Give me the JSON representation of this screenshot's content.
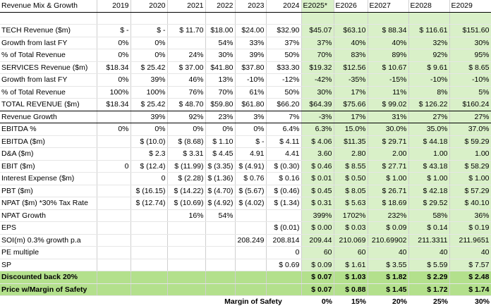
{
  "sheet": {
    "title": "Revenue Mix & Growth",
    "years": [
      "2019",
      "2020",
      "2021",
      "2022",
      "2023",
      "2024",
      "E2025*",
      "E2026",
      "E2027",
      "E2028",
      "E2029"
    ],
    "rows": [
      {
        "label": "",
        "cells": [
          "",
          "",
          "",
          "",
          "",
          "",
          "",
          "",
          "",
          "",
          ""
        ]
      },
      {
        "label": "TECH Revenue ($m)",
        "cells": [
          "$  -",
          "$  -",
          "$ 11.70",
          "$18.00",
          "$24.00",
          "$32.90",
          "$45.07",
          "$63.10",
          "$ 88.34",
          "$ 116.61",
          "$151.60"
        ]
      },
      {
        "label": "Growth from last FY",
        "cells": [
          "0%",
          "0%",
          "",
          "54%",
          "33%",
          "37%",
          "37%",
          "40%",
          "40%",
          "32%",
          "30%"
        ]
      },
      {
        "label": "% of Total Revenue",
        "cells": [
          "0%",
          "0%",
          "24%",
          "30%",
          "39%",
          "50%",
          "70%",
          "83%",
          "89%",
          "92%",
          "95%"
        ]
      },
      {
        "label": "SERVICES Revenue ($m)",
        "cells": [
          "$18.34",
          "$ 25.42",
          "$ 37.00",
          "$41.80",
          "$37.80",
          "$33.30",
          "$19.32",
          "$12.56",
          "$ 10.67",
          "$ 9.61",
          "$ 8.65"
        ]
      },
      {
        "label": "Growth from last FY",
        "cells": [
          "0%",
          "39%",
          "46%",
          "13%",
          "-10%",
          "-12%",
          "-42%",
          "-35%",
          "-15%",
          "-10%",
          "-10%"
        ]
      },
      {
        "label": "% of Total Revenue",
        "cells": [
          "100%",
          "100%",
          "76%",
          "70%",
          "61%",
          "50%",
          "30%",
          "17%",
          "11%",
          "8%",
          "5%"
        ]
      },
      {
        "label": "TOTAL REVENUE ($m)",
        "cells": [
          "$18.34",
          "$ 25.42",
          "$ 48.70",
          "$59.80",
          "$61.80",
          "$66.20",
          "$64.39",
          "$75.66",
          "$ 99.02",
          "$ 126.22",
          "$160.24"
        ]
      },
      {
        "label": "Revenue Growth",
        "cells": [
          "",
          "39%",
          "92%",
          "23%",
          "3%",
          "7%",
          "-3%",
          "17%",
          "31%",
          "27%",
          "27%"
        ]
      },
      {
        "label": "EBITDA %",
        "cells": [
          "0%",
          "0%",
          "0%",
          "0%",
          "0%",
          "6.4%",
          "6.3%",
          "15.0%",
          "30.0%",
          "35.0%",
          "37.0%"
        ]
      },
      {
        "label": "EBITDA ($m)",
        "cells": [
          "",
          "$ (10.0)",
          "$ (8.68)",
          "$ 1.10",
          "$  -",
          "$ 4.11",
          "$ 4.06",
          "$11.35",
          "$ 29.71",
          "$ 44.18",
          "$ 59.29"
        ]
      },
      {
        "label": "D&A ($m)",
        "cells": [
          "",
          "$ 2.3",
          "$ 3.31",
          "$ 4.45",
          "4.91",
          "4.41",
          "3.60",
          "2.80",
          "2.00",
          "1.00",
          "1.00"
        ]
      },
      {
        "label": "EBIT ($m)",
        "cells": [
          "0",
          "$ (12.4)",
          "$ (11.99)",
          "$ (3.35)",
          "$ (4.91)",
          "$ (0.30)",
          "$ 0.46",
          "$ 8.55",
          "$ 27.71",
          "$ 43.18",
          "$ 58.29"
        ]
      },
      {
        "label": "Interest Expense ($m)",
        "cells": [
          "",
          "0",
          "$ (2.28)",
          "$ (1.36)",
          "$ 0.76",
          "$ 0.16",
          "$ 0.01",
          "$ 0.50",
          "$ 1.00",
          "$ 1.00",
          "$ 1.00"
        ]
      },
      {
        "label": "PBT ($m)",
        "cells": [
          "",
          "$ (16.15)",
          "$ (14.22)",
          "$ (4.70)",
          "$ (5.67)",
          "$ (0.46)",
          "$ 0.45",
          "$ 8.05",
          "$ 26.71",
          "$ 42.18",
          "$ 57.29"
        ]
      },
      {
        "label": "NPAT ($m) *30% Tax Rate",
        "cells": [
          "",
          "$ (12.74)",
          "$ (10.69)",
          "$ (4.92)",
          "$ (4.02)",
          "$ (1.34)",
          "$ 0.31",
          "$ 5.63",
          "$ 18.69",
          "$ 29.52",
          "$ 40.10"
        ]
      },
      {
        "label": "NPAT Growth",
        "cells": [
          "",
          "",
          "16%",
          "54%",
          "",
          "",
          "399%",
          "1702%",
          "232%",
          "58%",
          "36%"
        ]
      },
      {
        "label": "EPS",
        "cells": [
          "",
          "",
          "",
          "",
          "",
          "$ (0.01)",
          "$ 0.00",
          "$ 0.03",
          "$ 0.09",
          "$ 0.14",
          "$ 0.19"
        ]
      },
      {
        "label": "SOI(m) 0.3% growth p.a",
        "cells": [
          "",
          "",
          "",
          "",
          "208.249",
          "208.814",
          "209.44",
          "210.069",
          "210.69902",
          "211.3311",
          "211.9651"
        ]
      },
      {
        "label": "PE multiple",
        "cells": [
          "",
          "",
          "",
          "",
          "",
          "0",
          "60",
          "60",
          "40",
          "40",
          "40"
        ]
      },
      {
        "label": "SP",
        "cells": [
          "",
          "",
          "",
          "",
          "",
          "$ 0.69",
          "$ 0.09",
          "$ 1.61",
          "$ 3.55",
          "$ 5.59",
          "$ 7.57"
        ]
      }
    ],
    "discounted": {
      "label": "Discounted back 20%",
      "cells": [
        "",
        "",
        "",
        "",
        "",
        "",
        "$ 0.07",
        "$ 1.03",
        "$ 1.82",
        "$ 2.29",
        "$ 2.48"
      ]
    },
    "price_mos": {
      "label": "Price w/Margin of Safety",
      "cells": [
        "",
        "",
        "",
        "",
        "",
        "",
        "$ 0.07",
        "$ 0.88",
        "$ 1.45",
        "$ 1.72",
        "$ 1.74"
      ]
    },
    "mos": {
      "label": "Margin of Safety",
      "values": [
        "0%",
        "15%",
        "20%",
        "25%",
        "30%"
      ]
    }
  }
}
